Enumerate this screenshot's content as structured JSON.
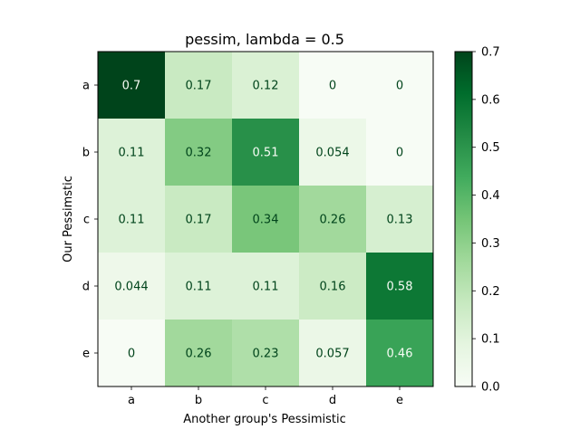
{
  "chart_data": {
    "type": "heatmap",
    "title": "pessim, lambda = 0.5",
    "xlabel": "Another group's Pessimistic",
    "ylabel": "Our Pessimstic",
    "x_categories": [
      "a",
      "b",
      "c",
      "d",
      "e"
    ],
    "y_categories": [
      "a",
      "b",
      "c",
      "d",
      "e"
    ],
    "values": [
      [
        0.7,
        0.17,
        0.12,
        0,
        0
      ],
      [
        0.11,
        0.32,
        0.51,
        0.054,
        0
      ],
      [
        0.11,
        0.17,
        0.34,
        0.26,
        0.13
      ],
      [
        0.044,
        0.11,
        0.11,
        0.16,
        0.58
      ],
      [
        0,
        0.26,
        0.23,
        0.057,
        0.46
      ]
    ],
    "cell_labels": [
      [
        "0.7",
        "0.17",
        "0.12",
        "0",
        "0"
      ],
      [
        "0.11",
        "0.32",
        "0.51",
        "0.054",
        "0"
      ],
      [
        "0.11",
        "0.17",
        "0.34",
        "0.26",
        "0.13"
      ],
      [
        "0.044",
        "0.11",
        "0.11",
        "0.16",
        "0.58"
      ],
      [
        "0",
        "0.26",
        "0.23",
        "0.057",
        "0.46"
      ]
    ],
    "colormap": "Greens",
    "vmin": 0,
    "vmax": 0.7,
    "colorbar_ticks": [
      0.0,
      0.1,
      0.2,
      0.3,
      0.4,
      0.5,
      0.6,
      0.7
    ],
    "colorbar_tick_labels": [
      "0.0",
      "0.1",
      "0.2",
      "0.3",
      "0.4",
      "0.5",
      "0.6",
      "0.7"
    ],
    "annotation_color": "#00441b"
  }
}
